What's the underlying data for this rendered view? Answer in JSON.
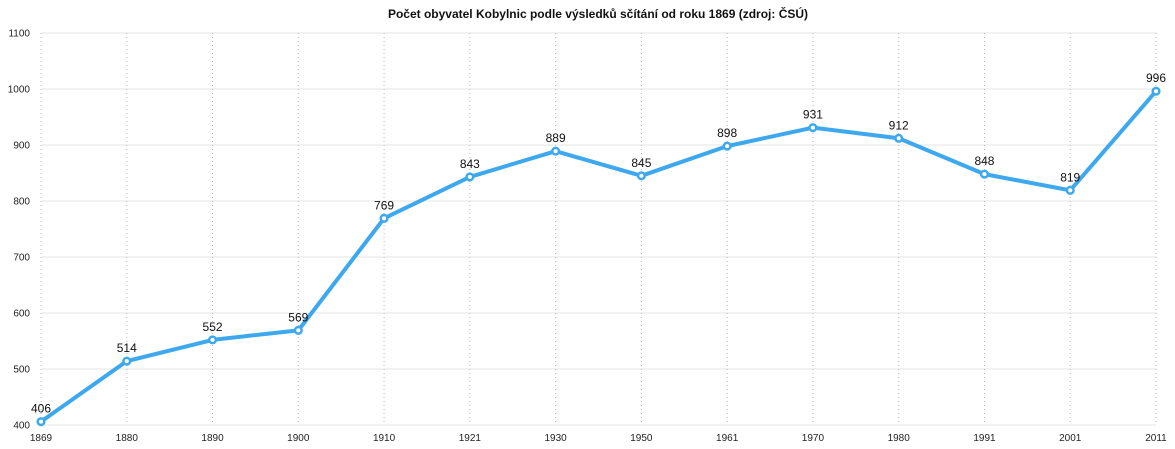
{
  "chart_data": {
    "type": "line",
    "title": "Počet obyvatel Kobylnic podle výsledků sčítání od roku 1869 (zdroj: ČSÚ)",
    "x": [
      "1869",
      "1880",
      "1890",
      "1900",
      "1910",
      "1921",
      "1930",
      "1950",
      "1961",
      "1970",
      "1980",
      "1991",
      "2001",
      "2011"
    ],
    "series": [
      {
        "values": [
          406,
          514,
          552,
          569,
          769,
          843,
          889,
          845,
          898,
          931,
          912,
          848,
          819,
          996
        ]
      }
    ],
    "ylim": [
      400,
      1100
    ],
    "yticks": [
      400,
      500,
      600,
      700,
      800,
      900,
      1000,
      1100
    ],
    "grid": true,
    "line_color": "#3ea8ee"
  }
}
